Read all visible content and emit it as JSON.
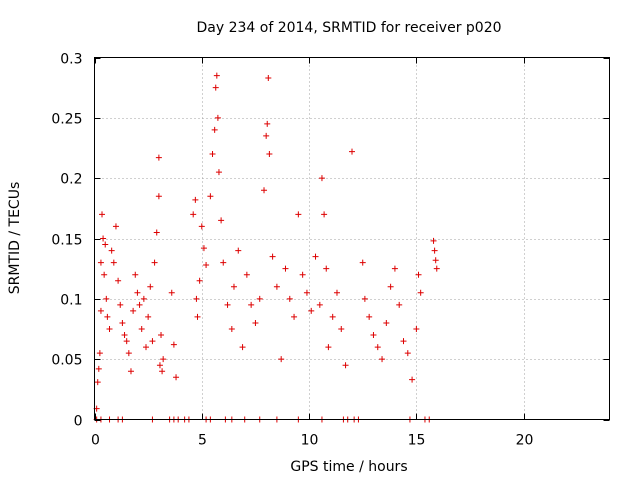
{
  "chart_data": {
    "type": "scatter",
    "title": "Day 234 of 2014, SRMTID for receiver p020",
    "xlabel": "GPS time / hours",
    "ylabel": "SRMTID / TECUs",
    "xlim": [
      0,
      24
    ],
    "ylim": [
      0,
      0.3
    ],
    "x_ticks": [
      0,
      5,
      10,
      15,
      20
    ],
    "x_tick_labels": [
      "0",
      "5",
      "10",
      "15",
      "20"
    ],
    "y_ticks": [
      0,
      0.05,
      0.1,
      0.15,
      0.2,
      0.25,
      0.3
    ],
    "y_tick_labels": [
      "0",
      "0.05",
      "0.1",
      "0.15",
      "0.2",
      "0.25",
      "0.3"
    ],
    "grid": true,
    "marker": "+",
    "marker_color": "#dd0000",
    "series": [
      {
        "name": "SRMTID p020",
        "points": [
          [
            0.1,
            0.0
          ],
          [
            0.3,
            0.0
          ],
          [
            0.7,
            0.0
          ],
          [
            1.1,
            0.0
          ],
          [
            1.3,
            0.0
          ],
          [
            2.7,
            0.0
          ],
          [
            3.5,
            0.0
          ],
          [
            3.7,
            0.0
          ],
          [
            3.9,
            0.0
          ],
          [
            4.2,
            0.0
          ],
          [
            4.4,
            0.0
          ],
          [
            5.2,
            0.0
          ],
          [
            5.4,
            0.0
          ],
          [
            6.1,
            0.0
          ],
          [
            6.4,
            0.0
          ],
          [
            7.0,
            0.0
          ],
          [
            7.7,
            0.0
          ],
          [
            8.5,
            0.0
          ],
          [
            9.5,
            0.0
          ],
          [
            10.6,
            0.0
          ],
          [
            11.6,
            0.0
          ],
          [
            11.8,
            0.0
          ],
          [
            12.1,
            0.0
          ],
          [
            12.3,
            0.0
          ],
          [
            14.7,
            0.0
          ],
          [
            15.4,
            0.0
          ],
          [
            15.6,
            0.0
          ],
          [
            0.1,
            0.009
          ],
          [
            0.15,
            0.031
          ],
          [
            0.2,
            0.042
          ],
          [
            0.25,
            0.055
          ],
          [
            0.3,
            0.09
          ],
          [
            0.3,
            0.13
          ],
          [
            0.35,
            0.17
          ],
          [
            0.4,
            0.15
          ],
          [
            0.45,
            0.12
          ],
          [
            0.5,
            0.145
          ],
          [
            0.55,
            0.1
          ],
          [
            0.6,
            0.085
          ],
          [
            0.7,
            0.075
          ],
          [
            0.8,
            0.14
          ],
          [
            0.9,
            0.13
          ],
          [
            1.0,
            0.16
          ],
          [
            1.1,
            0.115
          ],
          [
            1.2,
            0.095
          ],
          [
            1.3,
            0.08
          ],
          [
            1.4,
            0.07
          ],
          [
            1.5,
            0.065
          ],
          [
            1.6,
            0.055
          ],
          [
            1.7,
            0.04
          ],
          [
            1.8,
            0.09
          ],
          [
            1.9,
            0.12
          ],
          [
            2.0,
            0.105
          ],
          [
            2.1,
            0.095
          ],
          [
            2.2,
            0.075
          ],
          [
            2.3,
            0.1
          ],
          [
            2.4,
            0.06
          ],
          [
            2.5,
            0.085
          ],
          [
            2.6,
            0.11
          ],
          [
            2.7,
            0.065
          ],
          [
            2.8,
            0.13
          ],
          [
            2.9,
            0.155
          ],
          [
            3.0,
            0.185
          ],
          [
            3.0,
            0.217
          ],
          [
            3.05,
            0.045
          ],
          [
            3.1,
            0.07
          ],
          [
            3.15,
            0.04
          ],
          [
            3.2,
            0.05
          ],
          [
            3.6,
            0.105
          ],
          [
            3.7,
            0.062
          ],
          [
            3.8,
            0.035
          ],
          [
            4.6,
            0.17
          ],
          [
            4.7,
            0.182
          ],
          [
            4.75,
            0.1
          ],
          [
            4.8,
            0.085
          ],
          [
            4.9,
            0.115
          ],
          [
            5.0,
            0.16
          ],
          [
            5.1,
            0.142
          ],
          [
            5.2,
            0.128
          ],
          [
            5.4,
            0.185
          ],
          [
            5.5,
            0.22
          ],
          [
            5.6,
            0.24
          ],
          [
            5.65,
            0.275
          ],
          [
            5.7,
            0.285
          ],
          [
            5.75,
            0.25
          ],
          [
            5.8,
            0.205
          ],
          [
            5.9,
            0.165
          ],
          [
            6.0,
            0.13
          ],
          [
            6.2,
            0.095
          ],
          [
            6.4,
            0.075
          ],
          [
            6.5,
            0.11
          ],
          [
            6.7,
            0.14
          ],
          [
            6.9,
            0.06
          ],
          [
            7.1,
            0.12
          ],
          [
            7.3,
            0.095
          ],
          [
            7.5,
            0.08
          ],
          [
            7.7,
            0.1
          ],
          [
            7.9,
            0.19
          ],
          [
            8.0,
            0.235
          ],
          [
            8.05,
            0.245
          ],
          [
            8.1,
            0.283
          ],
          [
            8.15,
            0.22
          ],
          [
            8.3,
            0.135
          ],
          [
            8.5,
            0.11
          ],
          [
            8.7,
            0.05
          ],
          [
            8.9,
            0.125
          ],
          [
            9.1,
            0.1
          ],
          [
            9.3,
            0.085
          ],
          [
            9.5,
            0.17
          ],
          [
            9.7,
            0.12
          ],
          [
            9.9,
            0.105
          ],
          [
            10.1,
            0.09
          ],
          [
            10.3,
            0.135
          ],
          [
            10.5,
            0.095
          ],
          [
            10.6,
            0.2
          ],
          [
            10.7,
            0.17
          ],
          [
            10.8,
            0.125
          ],
          [
            10.9,
            0.06
          ],
          [
            11.1,
            0.085
          ],
          [
            11.3,
            0.105
          ],
          [
            11.5,
            0.075
          ],
          [
            11.7,
            0.045
          ],
          [
            12.0,
            0.222
          ],
          [
            12.5,
            0.13
          ],
          [
            12.6,
            0.1
          ],
          [
            12.8,
            0.085
          ],
          [
            13.0,
            0.07
          ],
          [
            13.2,
            0.06
          ],
          [
            13.4,
            0.05
          ],
          [
            13.6,
            0.08
          ],
          [
            13.8,
            0.11
          ],
          [
            14.0,
            0.125
          ],
          [
            14.2,
            0.095
          ],
          [
            14.4,
            0.065
          ],
          [
            14.6,
            0.055
          ],
          [
            14.8,
            0.033
          ],
          [
            15.0,
            0.075
          ],
          [
            15.1,
            0.12
          ],
          [
            15.2,
            0.105
          ],
          [
            15.8,
            0.148
          ],
          [
            15.85,
            0.14
          ],
          [
            15.9,
            0.132
          ],
          [
            15.95,
            0.125
          ]
        ]
      }
    ]
  }
}
